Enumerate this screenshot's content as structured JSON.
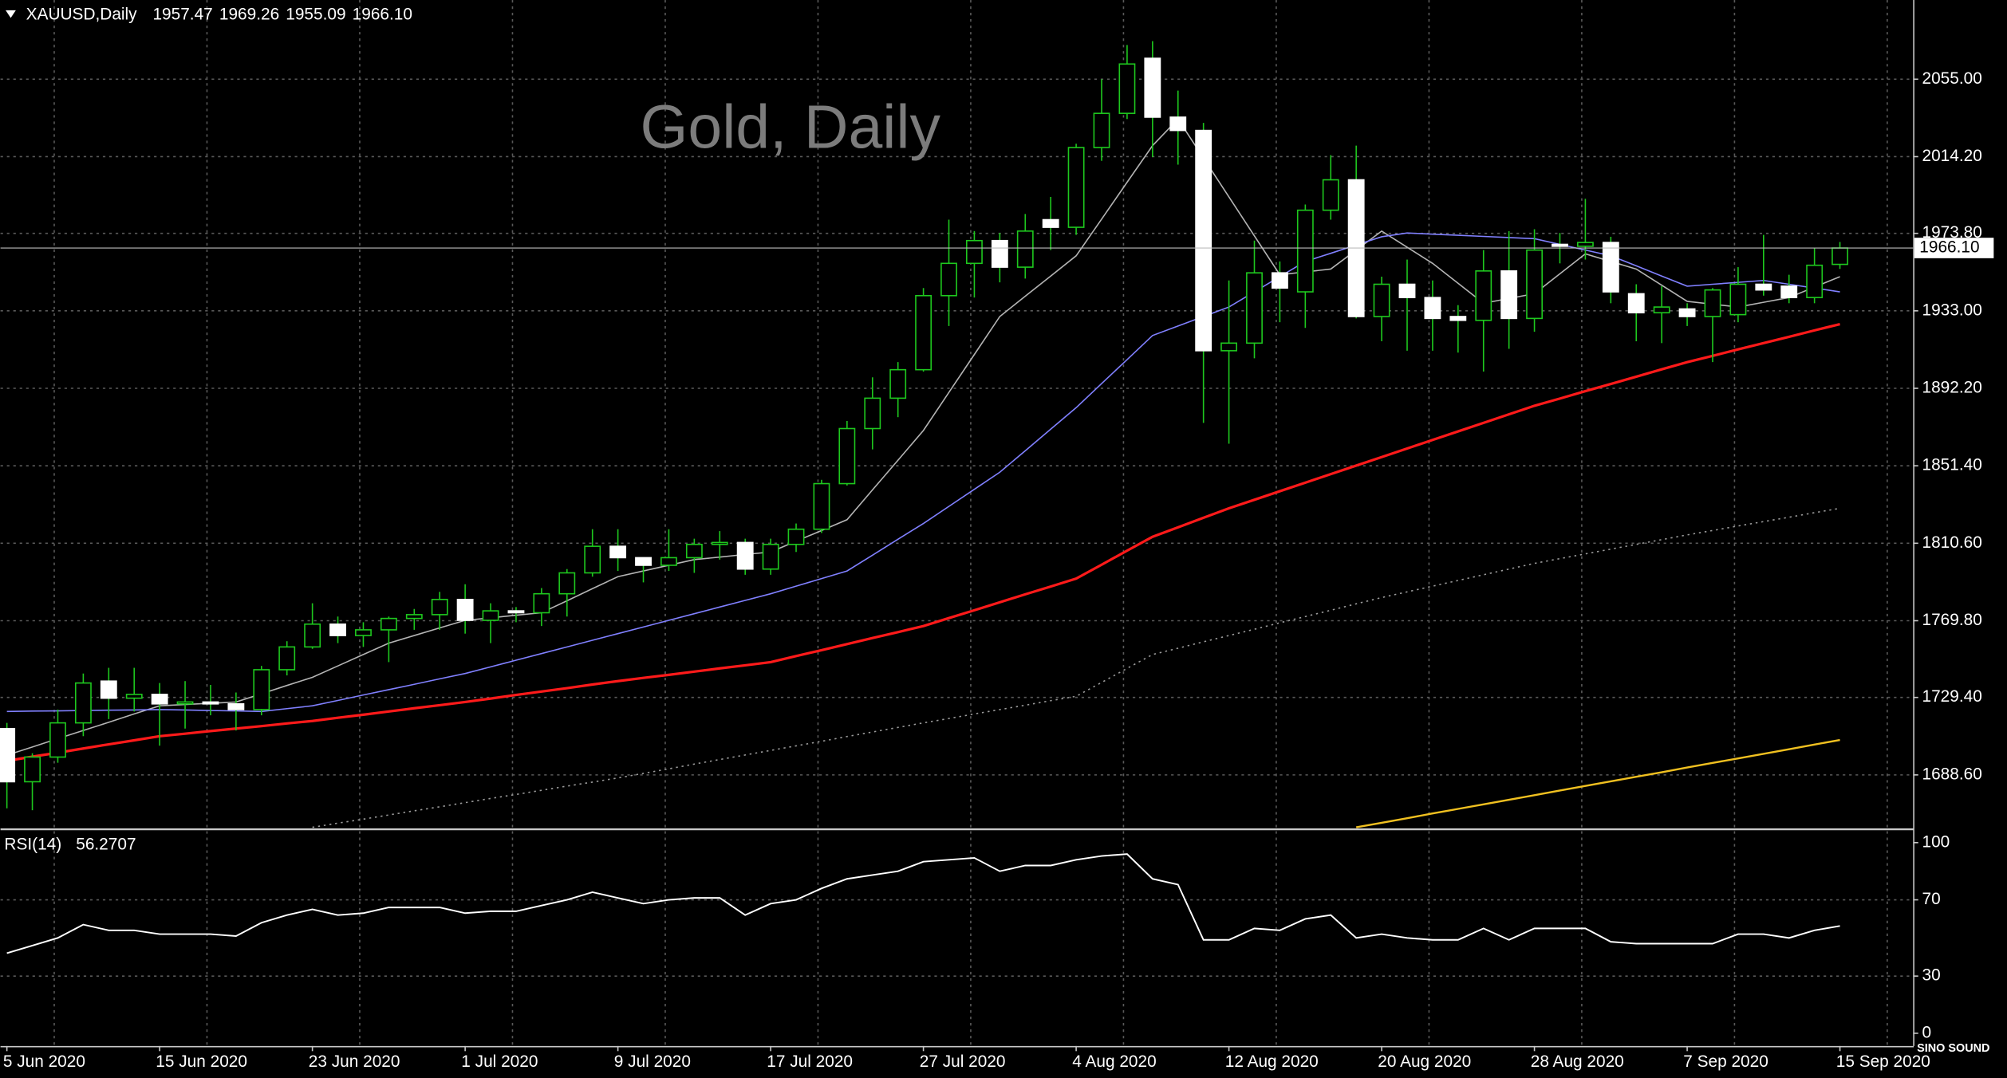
{
  "chart_data": {
    "type": "candlestick",
    "title": "XAUUSD,Daily",
    "watermark": "Gold, Daily",
    "logo": "SINO SOUND",
    "categories": [
      "5 Jun 2020",
      null,
      null,
      null,
      null,
      null,
      "15 Jun 2020",
      null,
      null,
      null,
      null,
      null,
      "23 Jun 2020",
      null,
      null,
      null,
      null,
      null,
      "1 Jul 2020",
      null,
      null,
      null,
      null,
      null,
      "9 Jul 2020",
      null,
      null,
      null,
      null,
      null,
      "17 Jul 2020",
      null,
      null,
      null,
      null,
      null,
      "27 Jul 2020",
      null,
      null,
      null,
      null,
      null,
      "4 Aug 2020",
      null,
      null,
      null,
      null,
      null,
      "12 Aug 2020",
      null,
      null,
      null,
      null,
      null,
      "20 Aug 2020",
      null,
      null,
      null,
      null,
      null,
      "28 Aug 2020",
      null,
      null,
      null,
      null,
      null,
      "7 Sep 2020",
      null,
      null,
      null,
      null,
      null,
      "15 Sep 2020"
    ],
    "open": [
      1713,
      1685,
      1698,
      1716,
      1738,
      1729,
      1731,
      1726,
      1727,
      1726,
      1723,
      1744,
      1756,
      1768,
      1762,
      1765,
      1771,
      1773,
      1781,
      1770,
      1775,
      1774,
      1784,
      1795,
      1809,
      1803,
      1799,
      1803,
      1810,
      1811,
      1797,
      1810,
      1818,
      1842,
      1871,
      1887,
      1902,
      1941,
      1958,
      1970,
      1956,
      1981,
      1977,
      2019,
      2037,
      2066,
      2035,
      2028,
      1912,
      1916,
      1953,
      1943,
      1986,
      2002,
      1930,
      1947,
      1940,
      1930,
      1928,
      1954,
      1929,
      1968,
      1967,
      1969,
      1942,
      1932,
      1934,
      1930,
      1931,
      1947,
      1946,
      1940,
      1957.47
    ],
    "high": [
      1716,
      1700,
      1723,
      1742,
      1745,
      1745,
      1737,
      1738,
      1736,
      1732,
      1746,
      1759,
      1779,
      1772,
      1769,
      1772,
      1776,
      1785,
      1789,
      1779,
      1777,
      1787,
      1797,
      1818,
      1818,
      1803,
      1818,
      1813,
      1817,
      1813,
      1813,
      1821,
      1844,
      1875,
      1898,
      1906,
      1945,
      1981,
      1975,
      1974,
      1984,
      1993,
      2021,
      2055,
      2073,
      2075,
      2049,
      2032,
      1949,
      1970,
      1959,
      1989,
      2015,
      2020,
      1951,
      1960,
      1949,
      1936,
      1965,
      1975,
      1976,
      1974,
      1992,
      1972,
      1947,
      1946,
      1937,
      1945,
      1956,
      1973,
      1952,
      1966,
      1969.26
    ],
    "low": [
      1671,
      1670,
      1695,
      1709,
      1718,
      1722,
      1704,
      1713,
      1720,
      1712,
      1720,
      1741,
      1755,
      1758,
      1756,
      1748,
      1765,
      1765,
      1763,
      1758,
      1769,
      1767,
      1772,
      1793,
      1796,
      1790,
      1796,
      1795,
      1802,
      1794,
      1794,
      1806,
      1816,
      1841,
      1860,
      1877,
      1901,
      1925,
      1940,
      1948,
      1950,
      1965,
      1973,
      2012,
      2034,
      2014,
      2010,
      1874,
      1863,
      1908,
      1927,
      1924,
      1981,
      1929,
      1917,
      1912,
      1912,
      1911,
      1901,
      1913,
      1922,
      1958,
      1960,
      1937,
      1917,
      1916,
      1925,
      1906,
      1927,
      1941,
      1937,
      1937,
      1955.09
    ],
    "close": [
      1685,
      1698,
      1716,
      1737,
      1729,
      1731,
      1726,
      1727,
      1726,
      1723,
      1744,
      1756,
      1768,
      1762,
      1765,
      1771,
      1773,
      1781,
      1770,
      1775,
      1774,
      1784,
      1795,
      1809,
      1803,
      1799,
      1803,
      1810,
      1811,
      1797,
      1810,
      1818,
      1842,
      1871,
      1887,
      1902,
      1941,
      1958,
      1970,
      1956,
      1975,
      1977,
      2019,
      2037,
      2063,
      2035,
      2028,
      1912,
      1916,
      1953,
      1945,
      1986,
      2002,
      1930,
      1947,
      1940,
      1929,
      1928,
      1954,
      1929,
      1965,
      1967,
      1969,
      1943,
      1932,
      1935,
      1930,
      1944,
      1947,
      1944,
      1940,
      1957,
      1966.1
    ],
    "last_close_label": "1966.10",
    "up_color": "#1ec81e",
    "down_color": "#ffffff",
    "overlays": [
      {
        "color": "#b4b4b4",
        "values": [
          1699,
          1703.3,
          1707.7,
          1712,
          1716.3,
          1720.7,
          1725,
          1725.7,
          1726.3,
          1727,
          1731.3,
          1735.7,
          1740,
          1746,
          1752,
          1758,
          1762,
          1766,
          1770,
          1771.3,
          1772.7,
          1774,
          1780.3,
          1786.7,
          1793,
          1796,
          1799,
          1802,
          1803.3,
          1804.7,
          1806,
          1811.7,
          1817.3,
          1823,
          1838.7,
          1854.3,
          1870,
          1890,
          1910,
          1930,
          1940.7,
          1951.3,
          1962,
          1981.3,
          2000.7,
          2020,
          2034,
          2013.5,
          1993,
          1972.5,
          1952,
          1953.5,
          1955,
          1965,
          1975,
          1966.5,
          1958,
          1947.5,
          1937,
          1939.5,
          1942,
          1952.5,
          1963,
          1959,
          1955,
          1946.5,
          1938,
          1936.5,
          1935,
          1937.5,
          1940,
          1945.5,
          1951
        ]
      },
      {
        "color": "#8080ff",
        "values": [
          1722,
          1722.2,
          1722.3,
          1722.5,
          1722.7,
          1722.8,
          1723,
          1722.8,
          1722.5,
          1722.3,
          1722,
          1723.5,
          1725,
          1727.8,
          1730.7,
          1733.5,
          1736.3,
          1739.2,
          1742,
          1745.5,
          1749,
          1752.5,
          1756,
          1759.5,
          1763,
          1766.5,
          1770,
          1773.5,
          1777,
          1780.5,
          1784,
          1788,
          1792,
          1796,
          1804.3,
          1812.7,
          1821,
          1830,
          1839,
          1848,
          1859.3,
          1870.7,
          1882,
          1894.7,
          1907.3,
          1920,
          1925,
          1930,
          1935,
          1943,
          1951,
          1959,
          1963.3,
          1967.7,
          1972,
          1974,
          1973.4,
          1972.8,
          1972.2,
          1971.6,
          1971,
          1968,
          1965,
          1962,
          1956.7,
          1951.3,
          1946,
          1947,
          1948,
          1949,
          1947,
          1945,
          1943
        ]
      },
      {
        "color": "#ff1a1a",
        "width": 2,
        "values": [
          1696,
          1698.2,
          1700.3,
          1702.5,
          1704.7,
          1706.8,
          1709,
          1710.3,
          1711.7,
          1713,
          1714.3,
          1715.7,
          1717,
          1718.7,
          1720.3,
          1722,
          1723.7,
          1725.3,
          1727,
          1728.8,
          1730.7,
          1732.5,
          1734.3,
          1736.2,
          1738,
          1739.7,
          1741.3,
          1743,
          1744.7,
          1746.3,
          1748,
          1751.2,
          1754.3,
          1757.5,
          1760.7,
          1763.8,
          1767,
          1771.2,
          1775.3,
          1779.5,
          1783.7,
          1787.8,
          1792,
          1799.3,
          1806.7,
          1814,
          1819,
          1824,
          1829,
          1833.5,
          1838,
          1842.5,
          1847,
          1851.5,
          1856,
          1860.5,
          1865,
          1869.5,
          1874,
          1878.5,
          1883,
          1886.8,
          1890.7,
          1894.5,
          1898.3,
          1902.2,
          1906,
          1909.3,
          1912.7,
          1916,
          1919.3,
          1922.7,
          1926
        ]
      },
      {
        "color": "#9a9a9a",
        "style": "dotted",
        "values": [
          null,
          null,
          null,
          null,
          null,
          null,
          null,
          null,
          null,
          null,
          null,
          null,
          1661,
          1663.2,
          1665.3,
          1667.5,
          1669.7,
          1671.8,
          1674,
          1676.2,
          1678.3,
          1680.5,
          1682.7,
          1684.8,
          1687,
          1689.4,
          1691.8,
          1694.3,
          1696.7,
          1699.1,
          1701.5,
          1703.9,
          1706.3,
          1708.8,
          1711.2,
          1713.6,
          1716,
          1718.3,
          1720.7,
          1723,
          1725.3,
          1727.7,
          1730,
          1737.3,
          1744.7,
          1752,
          1755.3,
          1758.7,
          1762,
          1765.3,
          1768.7,
          1772,
          1775.3,
          1778.7,
          1782,
          1785,
          1788,
          1791,
          1794,
          1797,
          1800,
          1802.5,
          1805,
          1807.5,
          1810,
          1812.5,
          1815,
          1817.3,
          1819.7,
          1822,
          1824.3,
          1826.7,
          1829
        ]
      },
      {
        "color": "#f0c020",
        "width": 1.5,
        "values": [
          null,
          null,
          null,
          null,
          null,
          null,
          null,
          null,
          null,
          null,
          null,
          null,
          null,
          null,
          null,
          null,
          null,
          null,
          null,
          null,
          null,
          null,
          null,
          null,
          null,
          null,
          null,
          null,
          null,
          null,
          null,
          null,
          null,
          null,
          null,
          null,
          null,
          null,
          null,
          null,
          null,
          null,
          null,
          null,
          null,
          null,
          null,
          null,
          null,
          null,
          null,
          null,
          null,
          1661,
          1663.4,
          1665.8,
          1668.3,
          1670.7,
          1673.1,
          1675.5,
          1677.9,
          1680.4,
          1682.8,
          1685.2,
          1687.6,
          1690,
          1692.5,
          1694.9,
          1697.3,
          1699.7,
          1702.1,
          1704.6,
          1707
        ]
      }
    ],
    "ylim": [
      1660.3,
      2096.7
    ],
    "yticks": [
      {
        "value": 1688.6,
        "label": "1688.60"
      },
      {
        "value": 1729.4,
        "label": "1729.40"
      },
      {
        "value": 1769.8,
        "label": "1769.80"
      },
      {
        "value": 1810.6,
        "label": "1810.60"
      },
      {
        "value": 1851.4,
        "label": "1851.40"
      },
      {
        "value": 1892.2,
        "label": "1892.20"
      },
      {
        "value": 1933,
        "label": "1933.00"
      },
      {
        "value": 1973.8,
        "label": "1973.80"
      },
      {
        "value": 2014.2,
        "label": "2014.20"
      },
      {
        "value": 2055,
        "label": "2055.00"
      }
    ],
    "grid": true,
    "rsi": {
      "title": "RSI(14)",
      "color": "#ffffff",
      "ylim": [
        -6.7,
        106
      ],
      "yticks": [
        0,
        30,
        70,
        100
      ],
      "levels": [
        30,
        70
      ],
      "values": [
        42,
        46,
        50,
        57,
        54,
        54,
        52,
        52,
        52,
        51,
        58,
        62,
        65,
        62,
        63,
        66,
        66,
        66,
        63,
        64,
        64,
        67,
        70,
        74,
        71,
        68,
        70,
        71,
        71,
        62,
        68,
        70,
        76,
        81,
        83,
        85,
        90,
        91,
        92,
        85,
        88,
        88,
        91,
        93,
        94,
        81,
        78,
        49,
        49,
        55,
        54,
        60,
        62,
        50,
        52,
        50,
        49,
        49,
        55,
        49,
        55,
        55,
        55,
        48,
        47,
        47,
        47,
        47,
        52,
        52,
        50,
        54,
        56.2707
      ]
    }
  }
}
